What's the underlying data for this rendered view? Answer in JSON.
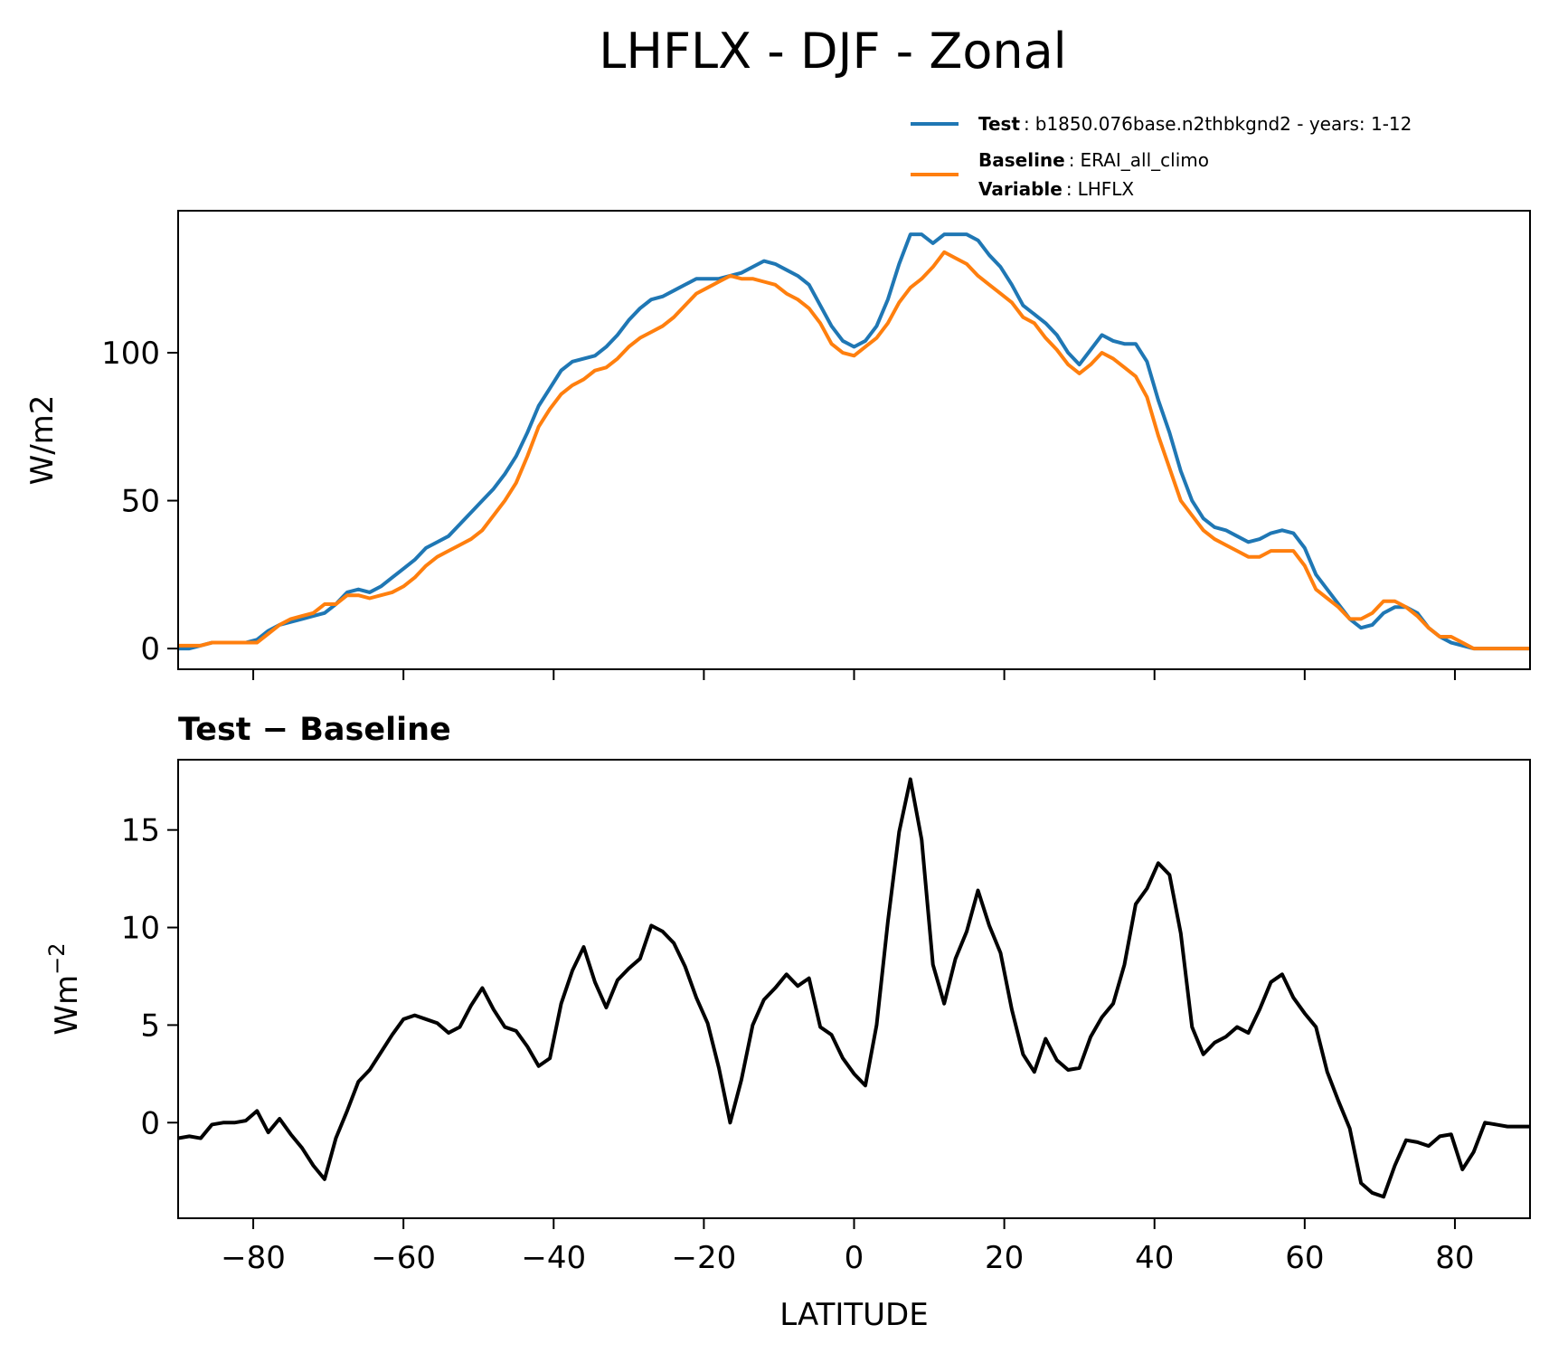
{
  "figure": {
    "title": "LHFLX - DJF - Zonal"
  },
  "legend": {
    "entries": [
      {
        "parts": [
          {
            "label": "Test",
            "text": "b1850.076base.n2thbkgnd2 - years: 1-12"
          }
        ],
        "color": "#1f77b4"
      },
      {
        "parts": [
          {
            "label": "Baseline",
            "text": "ERAI_all_climo"
          },
          {
            "label": "Variable",
            "text": "LHFLX"
          }
        ],
        "color": "#ff7f0e"
      }
    ],
    "separator": ":"
  },
  "chart_data": [
    {
      "type": "line",
      "title": "",
      "xlabel": "",
      "ylabel": "W/m2",
      "xlim": [
        -90,
        90
      ],
      "ylim": [
        -7,
        148
      ],
      "yticks": [
        0,
        50,
        100
      ],
      "xticks": [
        -80,
        -60,
        -40,
        -20,
        0,
        20,
        40,
        60,
        80
      ],
      "show_xticklabels": false,
      "grid": false,
      "legend_position": "above-right",
      "x": [
        -90,
        -88.5,
        -87,
        -85.5,
        -84,
        -82.5,
        -81,
        -79.5,
        -78,
        -76.5,
        -75,
        -73.5,
        -72,
        -70.5,
        -69,
        -67.5,
        -66,
        -64.5,
        -63,
        -61.5,
        -60,
        -58.5,
        -57,
        -55.5,
        -54,
        -52.5,
        -51,
        -49.5,
        -48,
        -46.5,
        -45,
        -43.5,
        -42,
        -40.5,
        -39,
        -37.5,
        -36,
        -34.5,
        -33,
        -31.5,
        -30,
        -28.5,
        -27,
        -25.5,
        -24,
        -22.5,
        -21,
        -19.5,
        -18,
        -16.5,
        -15,
        -13.5,
        -12,
        -10.5,
        -9,
        -7.5,
        -6,
        -4.5,
        -3,
        -1.5,
        0,
        1.5,
        3,
        4.5,
        6,
        7.5,
        9,
        10.5,
        12,
        13.5,
        15,
        16.5,
        18,
        19.5,
        21,
        22.5,
        24,
        25.5,
        27,
        28.5,
        30,
        31.5,
        33,
        34.5,
        36,
        37.5,
        39,
        40.5,
        42,
        43.5,
        45,
        46.5,
        48,
        49.5,
        51,
        52.5,
        54,
        55.5,
        57,
        58.5,
        60,
        61.5,
        63,
        64.5,
        66,
        67.5,
        69,
        70.5,
        72,
        73.5,
        75,
        76.5,
        78,
        79.5,
        81,
        82.5,
        84,
        85.5,
        87,
        88.5,
        90
      ],
      "series": [
        {
          "name": "Test",
          "color": "#1f77b4",
          "values": [
            0,
            0,
            1,
            2,
            2,
            2,
            2,
            3,
            6,
            8,
            9,
            10,
            11,
            12,
            15,
            19,
            20,
            19,
            21,
            24,
            27,
            30,
            34,
            36,
            38,
            42,
            46,
            50,
            54,
            59,
            65,
            73,
            82,
            88,
            94,
            97,
            98,
            99,
            102,
            106,
            111,
            115,
            118,
            119,
            121,
            123,
            125,
            125,
            125,
            126,
            127,
            129,
            131,
            130,
            128,
            126,
            123,
            116,
            109,
            104,
            102,
            104,
            109,
            118,
            130,
            140,
            140,
            137,
            140,
            140,
            140,
            138,
            133,
            129,
            123,
            116,
            113,
            110,
            106,
            100,
            96,
            101,
            106,
            104,
            103,
            103,
            97,
            84,
            73,
            60,
            50,
            44,
            41,
            40,
            38,
            36,
            37,
            39,
            40,
            39,
            34,
            25,
            20,
            15,
            10,
            7,
            8,
            12,
            14,
            14,
            12,
            7,
            4,
            2,
            1,
            0,
            0,
            0,
            0,
            0,
            0
          ]
        },
        {
          "name": "Baseline",
          "color": "#ff7f0e",
          "values": [
            1,
            1,
            1,
            2,
            2,
            2,
            2,
            2,
            5,
            8,
            10,
            11,
            12,
            15,
            15,
            18,
            18,
            17,
            18,
            19,
            21,
            24,
            28,
            31,
            33,
            35,
            37,
            40,
            45,
            50,
            56,
            65,
            75,
            81,
            86,
            89,
            91,
            94,
            95,
            98,
            102,
            105,
            107,
            109,
            112,
            116,
            120,
            122,
            124,
            126,
            125,
            125,
            124,
            123,
            120,
            118,
            115,
            110,
            103,
            100,
            99,
            102,
            105,
            110,
            117,
            122,
            125,
            129,
            134,
            132,
            130,
            126,
            123,
            120,
            117,
            112,
            110,
            105,
            101,
            96,
            93,
            96,
            100,
            98,
            95,
            92,
            85,
            72,
            61,
            50,
            45,
            40,
            37,
            35,
            33,
            31,
            31,
            33,
            33,
            33,
            28,
            20,
            17,
            14,
            10,
            10,
            12,
            16,
            16,
            14,
            11,
            7,
            4,
            4,
            2,
            0,
            0,
            0,
            0,
            0,
            0
          ]
        }
      ]
    },
    {
      "type": "line",
      "title": "Test − Baseline",
      "xlabel": "LATITUDE",
      "ylabel": "Wm",
      "ylabel_superscript": "−2",
      "xlim": [
        -90,
        90
      ],
      "ylim": [
        -4.9,
        18.6
      ],
      "yticks": [
        0,
        5,
        10,
        15
      ],
      "xticks": [
        -80,
        -60,
        -40,
        -20,
        0,
        20,
        40,
        60,
        80
      ],
      "xticklabels": [
        "−80",
        "−60",
        "−40",
        "−20",
        "0",
        "20",
        "40",
        "60",
        "80"
      ],
      "grid": false,
      "x": [
        -90,
        -88.5,
        -87,
        -85.5,
        -84,
        -82.5,
        -81,
        -79.5,
        -78,
        -76.5,
        -75,
        -73.5,
        -72,
        -70.5,
        -69,
        -67.5,
        -66,
        -64.5,
        -63,
        -61.5,
        -60,
        -58.5,
        -57,
        -55.5,
        -54,
        -52.5,
        -51,
        -49.5,
        -48,
        -46.5,
        -45,
        -43.5,
        -42,
        -40.5,
        -39,
        -37.5,
        -36,
        -34.5,
        -33,
        -31.5,
        -30,
        -28.5,
        -27,
        -25.5,
        -24,
        -22.5,
        -21,
        -19.5,
        -18,
        -16.5,
        -15,
        -13.5,
        -12,
        -10.5,
        -9,
        -7.5,
        -6,
        -4.5,
        -3,
        -1.5,
        0,
        1.5,
        3,
        4.5,
        6,
        7.5,
        9,
        10.5,
        12,
        13.5,
        15,
        16.5,
        18,
        19.5,
        21,
        22.5,
        24,
        25.5,
        27,
        28.5,
        30,
        31.5,
        33,
        34.5,
        36,
        37.5,
        39,
        40.5,
        42,
        43.5,
        45,
        46.5,
        48,
        49.5,
        51,
        52.5,
        54,
        55.5,
        57,
        58.5,
        60,
        61.5,
        63,
        64.5,
        66,
        67.5,
        69,
        70.5,
        72,
        73.5,
        75,
        76.5,
        78,
        79.5,
        81,
        82.5,
        84,
        85.5,
        87,
        88.5,
        90
      ],
      "series": [
        {
          "name": "",
          "color": "#000000",
          "values": [
            -0.8,
            -0.7,
            -0.8,
            -0.1,
            0,
            0,
            0.1,
            0.6,
            -0.5,
            0.2,
            -0.6,
            -1.3,
            -2.2,
            -2.9,
            -0.8,
            0.6,
            2.1,
            2.7,
            3.6,
            4.5,
            5.3,
            5.5,
            5.3,
            5.1,
            4.6,
            4.9,
            6,
            6.9,
            5.8,
            4.9,
            4.7,
            3.9,
            2.9,
            3.3,
            6.1,
            7.8,
            9,
            7.2,
            5.9,
            7.3,
            7.9,
            8.4,
            10.1,
            9.8,
            9.2,
            8,
            6.4,
            5.1,
            2.8,
            0,
            2.2,
            5,
            6.3,
            6.9,
            7.6,
            7.0,
            7.4,
            4.9,
            4.5,
            3.3,
            2.5,
            1.9,
            5,
            10.3,
            14.9,
            17.6,
            14.5,
            8.1,
            6.1,
            8.4,
            9.8,
            11.9,
            10.1,
            8.7,
            5.8,
            3.5,
            2.6,
            4.3,
            3.2,
            2.7,
            2.8,
            4.4,
            5.4,
            6.1,
            8.1,
            11.2,
            12,
            13.3,
            12.7,
            9.7,
            4.9,
            3.5,
            4.1,
            4.4,
            4.9,
            4.6,
            5.8,
            7.2,
            7.6,
            6.4,
            5.6,
            4.9,
            2.6,
            1.1,
            -0.3,
            -3.1,
            -3.6,
            -3.8,
            -2.2,
            -0.9,
            -1.0,
            -1.2,
            -0.7,
            -0.6,
            -2.4,
            -1.5,
            0,
            -0.1,
            -0.2,
            -0.2,
            -0.2
          ]
        }
      ]
    }
  ]
}
